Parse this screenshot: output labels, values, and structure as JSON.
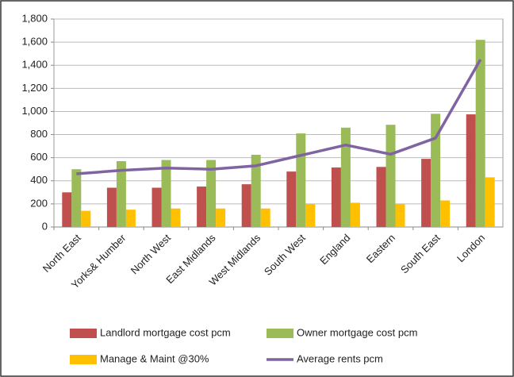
{
  "chart_data": {
    "type": "bar",
    "categories": [
      "North East",
      "Yorks& Humber",
      "North West",
      "East Midlands",
      "West Midlands",
      "South West",
      "England",
      "Eastern",
      "South East",
      "London"
    ],
    "series": [
      {
        "name": "Landlord mortgage cost pcm",
        "color": "#c0504d",
        "values": [
          300,
          340,
          340,
          350,
          370,
          480,
          515,
          520,
          590,
          975
        ]
      },
      {
        "name": "Owner mortgage cost pcm",
        "color": "#9bbb59",
        "values": [
          500,
          570,
          580,
          580,
          625,
          810,
          860,
          885,
          980,
          1620
        ]
      },
      {
        "name": "Manage & Maint @30%",
        "color": "#ffc000",
        "values": [
          140,
          150,
          160,
          160,
          160,
          200,
          210,
          200,
          230,
          430
        ]
      },
      {
        "name": "Average rents pcm",
        "color": "#8064a2",
        "type": "line",
        "values": [
          460,
          490,
          510,
          500,
          530,
          620,
          710,
          630,
          770,
          1450
        ]
      }
    ],
    "ylim": [
      0,
      1800
    ],
    "yticks": [
      0,
      200,
      400,
      600,
      800,
      {
        "value": 1000,
        "label": "1,000"
      },
      {
        "value": 1200,
        "label": "1,200"
      },
      {
        "value": 1400,
        "label": "1,400"
      },
      {
        "value": 1600,
        "label": "1,600"
      },
      {
        "value": 1800,
        "label": "1,800"
      }
    ],
    "grid": true,
    "legend": "bottom"
  }
}
